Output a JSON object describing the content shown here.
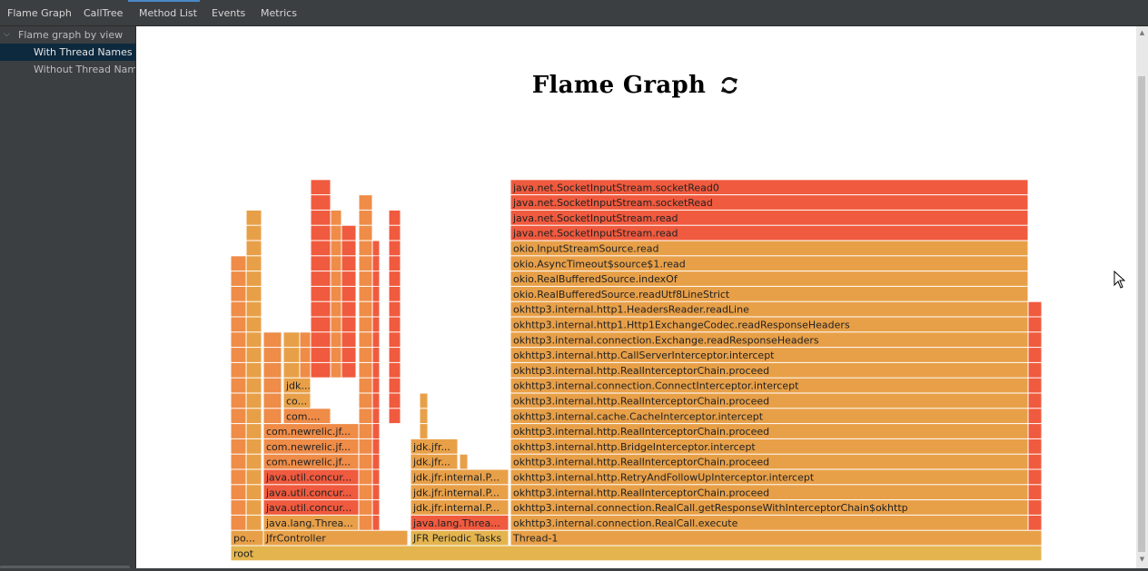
{
  "tabs": [
    "Flame Graph",
    "CallTree",
    "Method List",
    "Events",
    "Metrics"
  ],
  "sidebar": {
    "root_label": "Flame graph by view",
    "items": [
      "With Thread Names",
      "Without Thread Names"
    ]
  },
  "page_title": "Flame Graph",
  "icons": {
    "refresh": "refresh-icon",
    "expand": "chevron-down-icon",
    "cursor": "mouse-cursor-icon"
  },
  "colors": {
    "red": "#f05a3e",
    "orange": "#ee8c48",
    "amber": "#e8a048",
    "gold": "#e4b44f"
  },
  "frames": [
    {
      "label": "root",
      "color": "gold"
    },
    {
      "label": "po...",
      "color": "amber"
    },
    {
      "label": "JfrController",
      "color": "amber"
    },
    {
      "label": "JFR Periodic Tasks",
      "color": "gold"
    },
    {
      "label": "Thread-1",
      "color": "amber"
    },
    {
      "label": "java.lang.Threa...",
      "color": "amber"
    },
    {
      "label": "java.util.concur...",
      "color": "red"
    },
    {
      "label": "java.util.concur...",
      "color": "red"
    },
    {
      "label": "java.util.concur...",
      "color": "red"
    },
    {
      "label": "com.newrelic.jf...",
      "color": "orange"
    },
    {
      "label": "com.newrelic.jf...",
      "color": "orange"
    },
    {
      "label": "com.newrelic.jf...",
      "color": "orange"
    },
    {
      "label": "com....",
      "color": "orange"
    },
    {
      "label": "co...",
      "color": "amber"
    },
    {
      "label": "jdk...",
      "color": "amber"
    },
    {
      "label": "java.lang.Threa...",
      "color": "red"
    },
    {
      "label": "jdk.jfr.internal.P...",
      "color": "amber"
    },
    {
      "label": "jdk.jfr.internal.P...",
      "color": "amber"
    },
    {
      "label": "jdk.jfr.internal.P...",
      "color": "amber"
    },
    {
      "label": "jdk.jfr...",
      "color": "amber"
    },
    {
      "label": "jdk.jfr...",
      "color": "amber"
    },
    {
      "label": "okhttp3.internal.connection.RealCall.execute",
      "color": "amber"
    },
    {
      "label": "okhttp3.internal.connection.RealCall.getResponseWithInterceptorChain$okhttp",
      "color": "amber"
    },
    {
      "label": "okhttp3.internal.http.RealInterceptorChain.proceed",
      "color": "amber"
    },
    {
      "label": "okhttp3.internal.http.RetryAndFollowUpInterceptor.intercept",
      "color": "amber"
    },
    {
      "label": "okhttp3.internal.http.RealInterceptorChain.proceed",
      "color": "amber"
    },
    {
      "label": "okhttp3.internal.http.BridgeInterceptor.intercept",
      "color": "amber"
    },
    {
      "label": "okhttp3.internal.http.RealInterceptorChain.proceed",
      "color": "amber"
    },
    {
      "label": "okhttp3.internal.cache.CacheInterceptor.intercept",
      "color": "amber"
    },
    {
      "label": "okhttp3.internal.http.RealInterceptorChain.proceed",
      "color": "amber"
    },
    {
      "label": "okhttp3.internal.connection.ConnectInterceptor.intercept",
      "color": "amber"
    },
    {
      "label": "okhttp3.internal.http.RealInterceptorChain.proceed",
      "color": "amber"
    },
    {
      "label": "okhttp3.internal.http.CallServerInterceptor.intercept",
      "color": "amber"
    },
    {
      "label": "okhttp3.internal.connection.Exchange.readResponseHeaders",
      "color": "amber"
    },
    {
      "label": "okhttp3.internal.http1.Http1ExchangeCodec.readResponseHeaders",
      "color": "amber"
    },
    {
      "label": "okhttp3.internal.http1.HeadersReader.readLine",
      "color": "amber"
    },
    {
      "label": "okio.RealBufferedSource.readUtf8LineStrict",
      "color": "amber"
    },
    {
      "label": "okio.RealBufferedSource.indexOf",
      "color": "amber"
    },
    {
      "label": "okio.AsyncTimeout$source$1.read",
      "color": "amber"
    },
    {
      "label": "okio.InputStreamSource.read",
      "color": "amber"
    },
    {
      "label": "java.net.SocketInputStream.read",
      "color": "red"
    },
    {
      "label": "java.net.SocketInputStream.read",
      "color": "red"
    },
    {
      "label": "java.net.SocketInputStream.socketRead",
      "color": "red"
    },
    {
      "label": "java.net.SocketInputStream.socketRead0",
      "color": "red"
    }
  ]
}
